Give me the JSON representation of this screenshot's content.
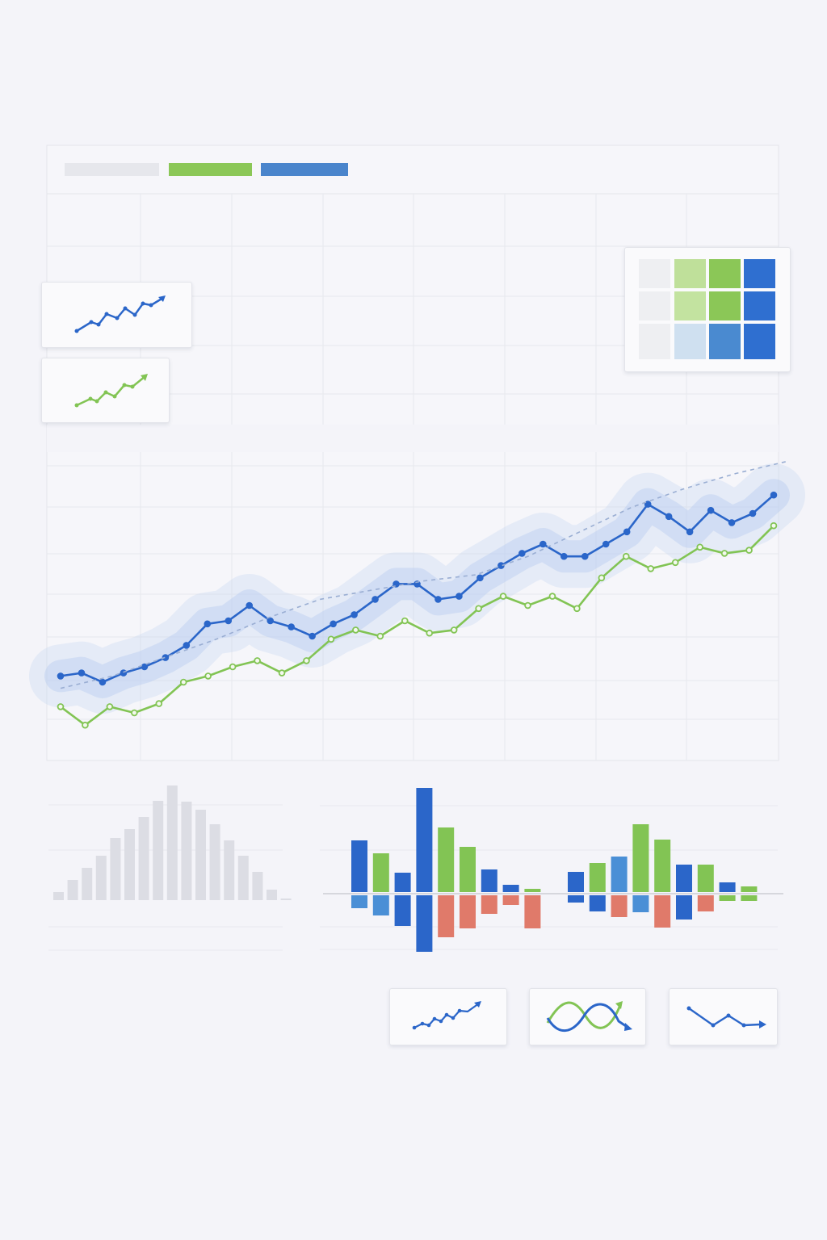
{
  "colors": {
    "background": "#f4f4f9",
    "blue": "#2b66c9",
    "light_blue": "#4a8fd6",
    "green": "#82c454",
    "red": "#e07a6a",
    "gray": "#dcdde4",
    "trend": "#9aaed3"
  },
  "legend": [
    {
      "color": "#e6e7ec"
    },
    {
      "color": "#8bc757"
    },
    {
      "color": "#4a85cc"
    }
  ],
  "chart_data": [
    {
      "type": "line",
      "grid": true,
      "series": [
        {
          "color": "blue",
          "markers": true,
          "band": true,
          "values": [
            27,
            28,
            25,
            28,
            30,
            33,
            37,
            44,
            45,
            50,
            45,
            43,
            40,
            44,
            47,
            52,
            57,
            57,
            52,
            53,
            59,
            63,
            67,
            70,
            66,
            66,
            70,
            74,
            83,
            79,
            74,
            81,
            77,
            80,
            86
          ]
        },
        {
          "color": "green",
          "markers": true,
          "values": [
            17,
            11,
            17,
            15,
            18,
            25,
            27,
            30,
            32,
            28,
            32,
            39,
            42,
            40,
            45,
            41,
            42,
            49,
            53,
            50,
            53,
            49,
            59,
            66,
            62,
            64,
            69,
            67,
            68,
            76
          ]
        },
        {
          "color": "trend",
          "style": "dashed",
          "values": [
            23,
            27,
            33,
            39,
            46,
            52,
            55,
            58,
            60,
            66,
            74,
            82,
            88,
            93,
            97
          ]
        }
      ],
      "ylim": [
        0,
        100
      ]
    },
    {
      "type": "bar",
      "grid": true,
      "color": "gray",
      "values": [
        10,
        25,
        40,
        55,
        77,
        88,
        103,
        123,
        142,
        122,
        112,
        94,
        74,
        55,
        35,
        13,
        2
      ]
    },
    {
      "type": "bar",
      "grid": true,
      "groups": [
        {
          "positive": [
            64,
            48,
            24,
            129,
            80,
            56,
            28,
            9,
            4
          ],
          "positive_colors": [
            "blue",
            "green",
            "blue",
            "blue",
            "green",
            "green",
            "blue",
            "blue",
            "green"
          ],
          "negative": [
            16,
            25,
            38,
            70,
            52,
            41,
            23,
            12,
            41
          ],
          "negative_colors": [
            "light_blue",
            "light_blue",
            "blue",
            "blue",
            "red",
            "red",
            "red",
            "red",
            "red"
          ]
        },
        {
          "positive": [
            25,
            36,
            44,
            84,
            65,
            34,
            34,
            12,
            7
          ],
          "positive_colors": [
            "blue",
            "green",
            "light_blue",
            "green",
            "green",
            "blue",
            "green",
            "blue",
            "green"
          ],
          "negative": [
            9,
            20,
            27,
            21,
            40,
            30,
            20,
            7,
            7
          ],
          "negative_colors": [
            "blue",
            "blue",
            "red",
            "light_blue",
            "red",
            "blue",
            "red",
            "green",
            "green"
          ]
        }
      ]
    },
    {
      "type": "heatmap",
      "rows": [
        [
          "#eeeff2",
          "#bfe09a",
          "#8bc757",
          "#2f6fd0"
        ],
        [
          "#eeeff2",
          "#c3e3a0",
          "#8bc757",
          "#2f6fd0"
        ],
        [
          "#eeeff2",
          "#cfe0f0",
          "#4a8ad0",
          "#2f6fd0"
        ]
      ]
    }
  ],
  "icons": {
    "card_1": "trend-up-blue-icon",
    "card_2": "trend-up-green-icon",
    "card_3": "trend-up-blue-icon",
    "card_4": "crossing-waves-icon",
    "card_5": "trend-down-icon"
  }
}
